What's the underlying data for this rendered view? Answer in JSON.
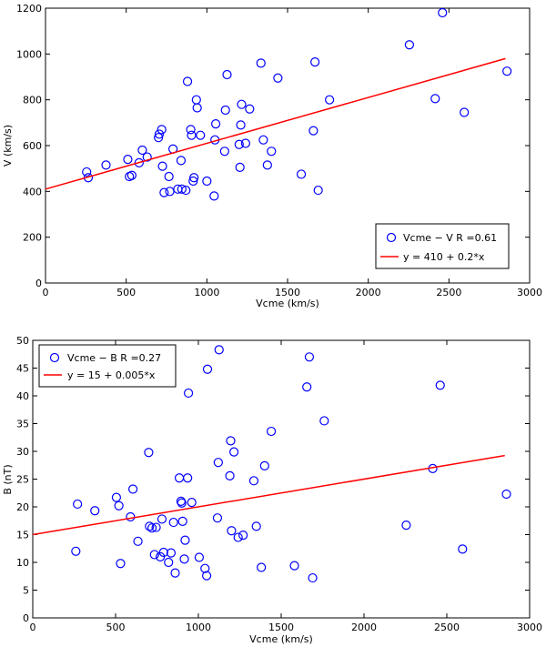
{
  "chart_data": [
    {
      "type": "scatter",
      "xlabel": "Vcme (km/s)",
      "ylabel": "V (km/s)",
      "xlim": [
        0,
        3000
      ],
      "ylim": [
        0,
        1200
      ],
      "xticks": [
        0,
        500,
        1000,
        1500,
        2000,
        2500,
        3000
      ],
      "yticks": [
        0,
        200,
        400,
        600,
        800,
        1000,
        1200
      ],
      "xtick_labels": [
        "0",
        "500",
        "1000",
        "1500",
        "2000",
        "2500",
        "3000"
      ],
      "ytick_labels": [
        "0",
        "200",
        "400",
        "600",
        "800",
        "1000",
        "1200"
      ],
      "legend": {
        "placement": "bottom-right",
        "scatter_label": "Vcme − V   R =0.61",
        "fit_label": "y = 410 + 0.2*x"
      },
      "fit": {
        "intercept": 410,
        "slope": 0.2,
        "x_range": [
          0,
          2850
        ]
      },
      "colors": {
        "marker": "#0000ff",
        "fit": "#ff0000"
      },
      "points": [
        [
          255,
          485
        ],
        [
          265,
          460
        ],
        [
          375,
          515
        ],
        [
          510,
          540
        ],
        [
          520,
          465
        ],
        [
          535,
          470
        ],
        [
          580,
          525
        ],
        [
          600,
          580
        ],
        [
          630,
          550
        ],
        [
          700,
          635
        ],
        [
          705,
          650
        ],
        [
          720,
          670
        ],
        [
          725,
          510
        ],
        [
          735,
          395
        ],
        [
          765,
          465
        ],
        [
          770,
          400
        ],
        [
          790,
          585
        ],
        [
          820,
          410
        ],
        [
          840,
          535
        ],
        [
          845,
          410
        ],
        [
          870,
          405
        ],
        [
          880,
          880
        ],
        [
          900,
          670
        ],
        [
          905,
          645
        ],
        [
          915,
          445
        ],
        [
          920,
          460
        ],
        [
          935,
          800
        ],
        [
          940,
          765
        ],
        [
          960,
          645
        ],
        [
          1000,
          445
        ],
        [
          1045,
          380
        ],
        [
          1050,
          625
        ],
        [
          1055,
          695
        ],
        [
          1110,
          575
        ],
        [
          1115,
          755
        ],
        [
          1125,
          910
        ],
        [
          1200,
          605
        ],
        [
          1205,
          505
        ],
        [
          1210,
          690
        ],
        [
          1215,
          780
        ],
        [
          1240,
          610
        ],
        [
          1265,
          760
        ],
        [
          1335,
          960
        ],
        [
          1350,
          625
        ],
        [
          1375,
          515
        ],
        [
          1400,
          575
        ],
        [
          1440,
          895
        ],
        [
          1585,
          475
        ],
        [
          1660,
          665
        ],
        [
          1670,
          965
        ],
        [
          1690,
          405
        ],
        [
          1760,
          800
        ],
        [
          2255,
          1040
        ],
        [
          2415,
          805
        ],
        [
          2460,
          1180
        ],
        [
          2595,
          745
        ],
        [
          2860,
          925
        ]
      ]
    },
    {
      "type": "scatter",
      "xlabel": "Vcme (km/s)",
      "ylabel": "B (nT)",
      "xlim": [
        0,
        3000
      ],
      "ylim": [
        0,
        50
      ],
      "xticks": [
        0,
        500,
        1000,
        1500,
        2000,
        2500,
        3000
      ],
      "yticks": [
        0,
        5,
        10,
        15,
        20,
        25,
        30,
        35,
        40,
        45,
        50
      ],
      "xtick_labels": [
        "0",
        "500",
        "1000",
        "1500",
        "2000",
        "2500",
        "3000"
      ],
      "ytick_labels": [
        "0",
        "5",
        "10",
        "15",
        "20",
        "25",
        "30",
        "35",
        "40",
        "45",
        "50"
      ],
      "legend": {
        "placement": "top-left",
        "scatter_label": "Vcme − B   R =0.27",
        "fit_label": "y = 15 + 0.005*x"
      },
      "fit": {
        "intercept": 15,
        "slope": 0.005,
        "x_range": [
          0,
          2850
        ]
      },
      "colors": {
        "marker": "#0000ff",
        "fit": "#ff0000"
      },
      "points": [
        [
          260,
          12.0
        ],
        [
          270,
          20.5
        ],
        [
          375,
          19.3
        ],
        [
          505,
          21.7
        ],
        [
          520,
          20.2
        ],
        [
          530,
          9.8
        ],
        [
          590,
          18.2
        ],
        [
          605,
          23.2
        ],
        [
          635,
          13.8
        ],
        [
          700,
          29.8
        ],
        [
          705,
          16.5
        ],
        [
          720,
          16.2
        ],
        [
          735,
          11.4
        ],
        [
          745,
          16.3
        ],
        [
          770,
          11.0
        ],
        [
          780,
          17.8
        ],
        [
          790,
          11.8
        ],
        [
          820,
          10.0
        ],
        [
          835,
          11.7
        ],
        [
          850,
          17.2
        ],
        [
          860,
          8.1
        ],
        [
          885,
          25.2
        ],
        [
          895,
          21.0
        ],
        [
          900,
          20.7
        ],
        [
          905,
          17.4
        ],
        [
          915,
          10.6
        ],
        [
          920,
          14.0
        ],
        [
          935,
          25.2
        ],
        [
          940,
          40.5
        ],
        [
          960,
          20.8
        ],
        [
          1005,
          10.9
        ],
        [
          1040,
          8.9
        ],
        [
          1050,
          7.6
        ],
        [
          1055,
          44.8
        ],
        [
          1115,
          18.0
        ],
        [
          1120,
          28.0
        ],
        [
          1125,
          48.3
        ],
        [
          1190,
          25.6
        ],
        [
          1195,
          31.9
        ],
        [
          1200,
          15.7
        ],
        [
          1215,
          29.9
        ],
        [
          1240,
          14.5
        ],
        [
          1270,
          14.9
        ],
        [
          1335,
          24.7
        ],
        [
          1350,
          16.5
        ],
        [
          1380,
          9.1
        ],
        [
          1400,
          27.4
        ],
        [
          1440,
          33.6
        ],
        [
          1580,
          9.4
        ],
        [
          1655,
          41.6
        ],
        [
          1670,
          47.0
        ],
        [
          1690,
          7.2
        ],
        [
          1760,
          35.5
        ],
        [
          2255,
          16.7
        ],
        [
          2415,
          26.9
        ],
        [
          2460,
          41.9
        ],
        [
          2595,
          12.4
        ],
        [
          2860,
          22.3
        ]
      ]
    }
  ]
}
